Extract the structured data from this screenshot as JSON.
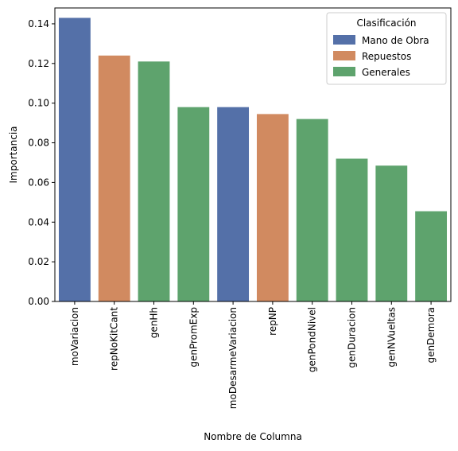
{
  "chart_data": {
    "type": "bar",
    "xlabel": "Nombre de Columna",
    "ylabel": "Importancia",
    "ylim": [
      0,
      0.148
    ],
    "yticks": [
      "0.00",
      "0.02",
      "0.04",
      "0.06",
      "0.08",
      "0.10",
      "0.12",
      "0.14"
    ],
    "grid": false,
    "legend": {
      "title": "Clasificación",
      "placement": "top-right",
      "entries": [
        {
          "name": "Mano de Obra",
          "color": "#5470a8"
        },
        {
          "name": "Repuestos",
          "color": "#d18a60"
        },
        {
          "name": "Generales",
          "color": "#5ea36d"
        }
      ]
    },
    "bars": [
      {
        "category": "moVariacion",
        "value": 0.143,
        "group": "Mano de Obra"
      },
      {
        "category": "repNoKitCant",
        "value": 0.124,
        "group": "Repuestos"
      },
      {
        "category": "genHh",
        "value": 0.121,
        "group": "Generales"
      },
      {
        "category": "genPromExp",
        "value": 0.098,
        "group": "Generales"
      },
      {
        "category": "moDesarmeVariacion",
        "value": 0.098,
        "group": "Mano de Obra"
      },
      {
        "category": "repNP",
        "value": 0.0945,
        "group": "Repuestos"
      },
      {
        "category": "genPondNivel",
        "value": 0.092,
        "group": "Generales"
      },
      {
        "category": "genDuracion",
        "value": 0.072,
        "group": "Generales"
      },
      {
        "category": "genNVueltas",
        "value": 0.0685,
        "group": "Generales"
      },
      {
        "category": "genDemora",
        "value": 0.0455,
        "group": "Generales"
      }
    ]
  }
}
